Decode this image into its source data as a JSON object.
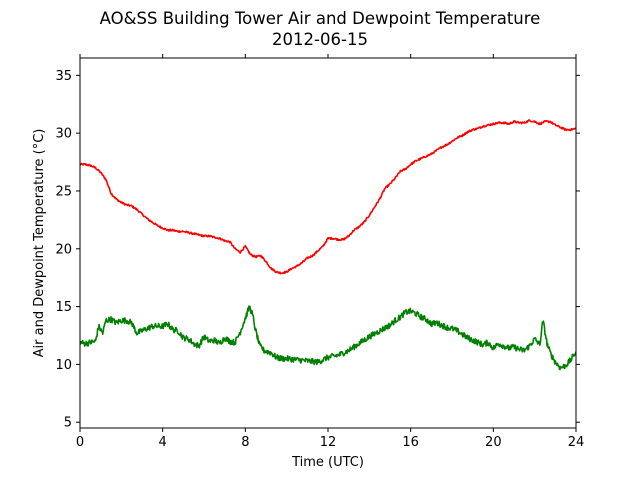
{
  "chart_data": {
    "type": "line",
    "title": "AO&SS Building Tower Air and Dewpoint Temperature",
    "subtitle": "2012-06-15",
    "xlabel": "Time (UTC)",
    "ylabel": "Air and Dewpoint Temperature (°C)",
    "xlim": [
      0,
      24
    ],
    "ylim": [
      4.5,
      36.5
    ],
    "xticks": [
      0,
      4,
      8,
      12,
      16,
      20,
      24
    ],
    "yticks": [
      5,
      10,
      15,
      20,
      25,
      30,
      35
    ],
    "grid": false,
    "legend": "none",
    "series": [
      {
        "color": "#ff0000",
        "x": [
          0,
          0.25,
          0.5,
          0.75,
          1.0,
          1.25,
          1.4,
          1.5,
          1.75,
          2.0,
          2.25,
          2.5,
          2.75,
          3.0,
          3.25,
          3.5,
          3.75,
          4.0,
          4.25,
          4.5,
          4.75,
          5.0,
          5.25,
          5.5,
          5.75,
          6.0,
          6.25,
          6.5,
          6.75,
          7.0,
          7.25,
          7.5,
          7.75,
          8.0,
          8.25,
          8.5,
          8.75,
          9.0,
          9.25,
          9.5,
          9.75,
          10.0,
          10.25,
          10.5,
          10.75,
          11.0,
          11.25,
          11.5,
          11.75,
          12.0,
          12.25,
          12.5,
          12.75,
          13.0,
          13.25,
          13.5,
          13.75,
          14.0,
          14.25,
          14.5,
          14.75,
          15.0,
          15.25,
          15.5,
          15.75,
          16.0,
          16.25,
          16.5,
          16.75,
          17.0,
          17.25,
          17.5,
          17.75,
          18.0,
          18.25,
          18.5,
          18.75,
          19.0,
          19.25,
          19.5,
          19.75,
          20.0,
          20.25,
          20.5,
          20.75,
          21.0,
          21.25,
          21.5,
          21.75,
          22.0,
          22.25,
          22.5,
          22.75,
          23.0,
          23.25,
          23.5,
          23.75,
          24.0
        ],
        "y": [
          27.3,
          27.3,
          27.2,
          27.0,
          26.6,
          26.0,
          25.3,
          24.8,
          24.3,
          24.0,
          23.8,
          23.7,
          23.4,
          23.0,
          22.6,
          22.3,
          22.0,
          21.8,
          21.6,
          21.6,
          21.5,
          21.5,
          21.4,
          21.3,
          21.2,
          21.1,
          21.1,
          21.0,
          20.9,
          20.7,
          20.6,
          20.0,
          19.7,
          20.2,
          19.5,
          19.3,
          19.4,
          18.9,
          18.3,
          18.0,
          17.9,
          18.0,
          18.3,
          18.5,
          18.8,
          19.2,
          19.4,
          19.8,
          20.2,
          20.9,
          20.9,
          20.8,
          20.8,
          21.1,
          21.6,
          21.9,
          22.3,
          22.9,
          23.6,
          24.3,
          25.2,
          25.6,
          26.1,
          26.7,
          26.9,
          27.3,
          27.6,
          27.8,
          28.0,
          28.2,
          28.5,
          28.8,
          29.0,
          29.3,
          29.6,
          29.8,
          30.1,
          30.3,
          30.4,
          30.6,
          30.7,
          30.8,
          30.9,
          30.9,
          30.8,
          31.0,
          30.9,
          30.9,
          31.1,
          31.0,
          30.8,
          31.0,
          31.0,
          30.7,
          30.5,
          30.3,
          30.3,
          30.4
        ],
        "noise": 0.08
      },
      {
        "color": "#008000",
        "x": [
          0,
          0.25,
          0.5,
          0.75,
          0.9,
          1.1,
          1.25,
          1.5,
          1.75,
          2.0,
          2.25,
          2.5,
          2.75,
          3.0,
          3.25,
          3.5,
          3.75,
          4.0,
          4.25,
          4.5,
          4.75,
          5.0,
          5.25,
          5.5,
          5.75,
          6.0,
          6.25,
          6.5,
          6.75,
          7.0,
          7.25,
          7.5,
          7.75,
          8.0,
          8.2,
          8.35,
          8.5,
          8.7,
          8.9,
          9.25,
          9.5,
          9.75,
          10.0,
          10.5,
          11.0,
          11.5,
          12.0,
          12.5,
          13.0,
          13.5,
          14.0,
          14.5,
          15.0,
          15.25,
          15.5,
          15.75,
          16.0,
          16.25,
          16.5,
          16.75,
          17.0,
          17.25,
          17.5,
          17.75,
          18.0,
          18.25,
          18.5,
          18.75,
          19.0,
          19.25,
          19.5,
          19.75,
          20.0,
          20.25,
          20.5,
          20.75,
          21.0,
          21.25,
          21.5,
          21.75,
          22.0,
          22.25,
          22.4,
          22.6,
          22.75,
          23.0,
          23.25,
          23.5,
          23.75,
          24.0
        ],
        "y": [
          11.9,
          11.8,
          11.9,
          12.0,
          13.3,
          12.7,
          13.8,
          13.9,
          13.6,
          13.8,
          13.8,
          13.6,
          12.7,
          12.9,
          13.1,
          13.3,
          13.3,
          13.3,
          13.5,
          13.0,
          12.9,
          12.3,
          12.2,
          11.8,
          11.6,
          12.4,
          12.0,
          12.1,
          11.8,
          12.3,
          12.0,
          11.9,
          12.8,
          14.0,
          15.0,
          14.3,
          12.9,
          11.6,
          11.2,
          11.0,
          10.6,
          10.5,
          10.5,
          10.4,
          10.3,
          10.2,
          10.6,
          10.8,
          11.2,
          11.8,
          12.4,
          12.9,
          13.4,
          13.8,
          14.1,
          14.5,
          14.6,
          14.4,
          14.1,
          13.9,
          13.5,
          13.6,
          13.4,
          13.2,
          13.1,
          12.9,
          12.6,
          12.3,
          12.1,
          11.9,
          11.7,
          11.9,
          11.4,
          11.8,
          11.6,
          11.4,
          11.5,
          11.3,
          11.2,
          11.6,
          12.2,
          11.7,
          13.8,
          11.8,
          11.0,
          10.2,
          9.7,
          9.9,
          10.4,
          11.1
        ],
        "noise": 0.25
      }
    ]
  }
}
